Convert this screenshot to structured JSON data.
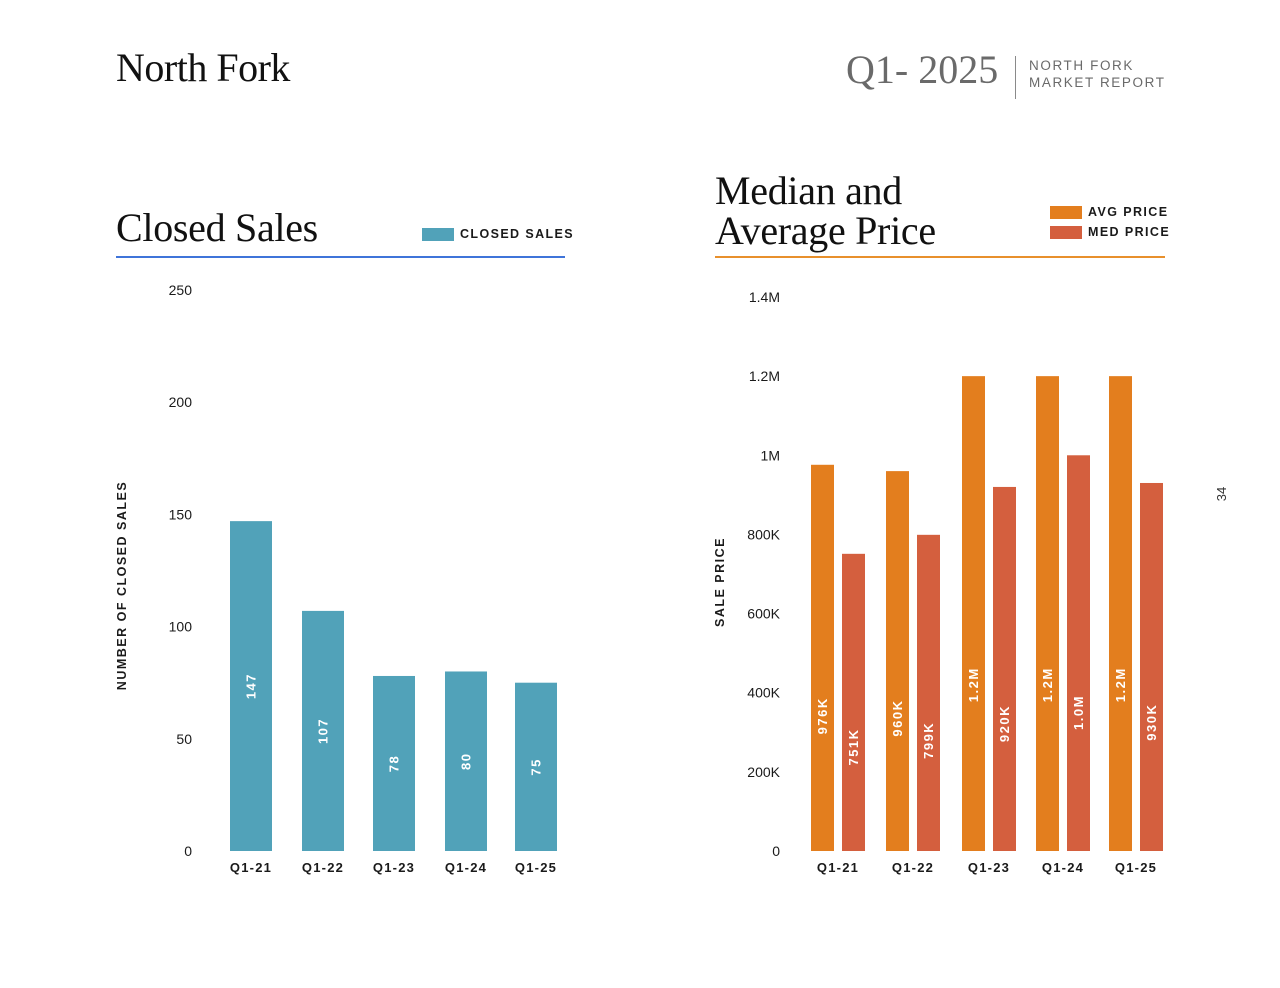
{
  "header": {
    "region": "North Fork",
    "quarter": "Q1- 2025",
    "report_line1": "NORTH FORK",
    "report_line2": "MARKET REPORT"
  },
  "page_number": "34",
  "colors": {
    "closed_sales": "#51A2B9",
    "avg_price": "#E37E1E",
    "med_price": "#D45F3E",
    "closed_rule": "#3F74D9",
    "price_rule": "#E8902C"
  },
  "chart_data": [
    {
      "type": "bar",
      "title": "Closed Sales",
      "xlabel": "",
      "ylabel": "NUMBER OF CLOSED SALES",
      "categories": [
        "Q1-21",
        "Q1-22",
        "Q1-23",
        "Q1-24",
        "Q1-25"
      ],
      "series": [
        {
          "name": "CLOSED SALES",
          "values": [
            147,
            107,
            78,
            80,
            75
          ],
          "labels": [
            "147",
            "107",
            "78",
            "80",
            "75"
          ]
        }
      ],
      "yticks": [
        0,
        50,
        100,
        150,
        200,
        250
      ],
      "ytick_labels": [
        "0",
        "50",
        "100",
        "150",
        "200",
        "250"
      ],
      "ylim": [
        0,
        250
      ],
      "grid": false,
      "legend": "top-right"
    },
    {
      "type": "bar",
      "title_line1": "Median and",
      "title_line2": "Average Price",
      "xlabel": "",
      "ylabel": "SALE PRICE",
      "categories": [
        "Q1-21",
        "Q1-22",
        "Q1-23",
        "Q1-24",
        "Q1-25"
      ],
      "series": [
        {
          "name": "AVG PRICE",
          "values": [
            976000,
            960000,
            1200000,
            1200000,
            1200000
          ],
          "labels": [
            "976K",
            "960K",
            "1.2M",
            "1.2M",
            "1.2M"
          ]
        },
        {
          "name": "MED PRICE",
          "values": [
            751000,
            799000,
            920000,
            1000000,
            930000
          ],
          "labels": [
            "751K",
            "799K",
            "920K",
            "1.0M",
            "930K"
          ]
        }
      ],
      "yticks": [
        0,
        200000,
        400000,
        600000,
        800000,
        1000000,
        1200000,
        1400000
      ],
      "ytick_labels": [
        "0",
        "200K",
        "400K",
        "600K",
        "800K",
        "1M",
        "1.2M",
        "1.4M"
      ],
      "ylim": [
        0,
        1400000
      ],
      "grid": false,
      "legend": "top-right"
    }
  ]
}
